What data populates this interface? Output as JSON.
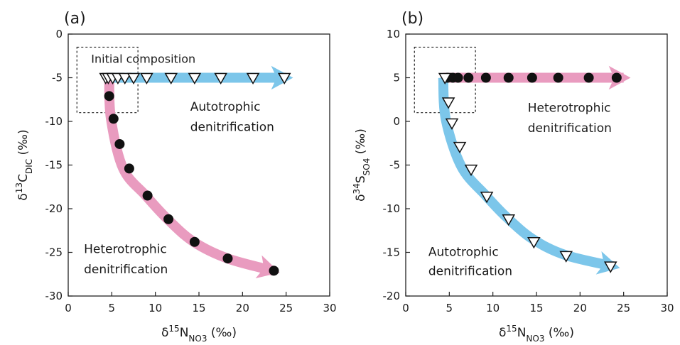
{
  "chart_data": [
    {
      "type": "scatter",
      "panel_label": "(a)",
      "xlabel": {
        "main": "δ",
        "sup": "15",
        "base": "N",
        "sub": "NO3",
        "unit": " (‰)"
      },
      "ylabel": {
        "main": "δ",
        "sup": "13",
        "base": "C",
        "sub": "DIC",
        "unit": " (‰)"
      },
      "xlim": [
        0,
        30
      ],
      "ylim": [
        -30,
        0
      ],
      "xticks": [
        "0",
        "5",
        "10",
        "15",
        "20",
        "25",
        "30"
      ],
      "yticks": [
        "0",
        "-5",
        "-10",
        "-15",
        "-20",
        "-25",
        "-30"
      ],
      "grid": false,
      "initial_box": {
        "label": "Initial composition",
        "x": [
          1,
          8
        ],
        "y": [
          -9,
          -1.5
        ]
      },
      "annotations": [
        {
          "id": "autotrophic",
          "lines": [
            "Autotrophic",
            "denitrification"
          ],
          "x": 14,
          "y": [
            -8.8,
            -11.1
          ]
        },
        {
          "id": "heterotrophic",
          "lines": [
            "Heterotrophic",
            "denitrification"
          ],
          "x": 1.8,
          "y": [
            -25.1,
            -27.4
          ]
        }
      ],
      "arrows": [
        {
          "name": "Autotrophic denitrification",
          "color": "#7cc6ea",
          "points": [
            [
              4.3,
              -5
            ],
            [
              25,
              -5
            ]
          ]
        },
        {
          "name": "Heterotrophic denitrification",
          "color": "#e99bbf",
          "points": [
            [
              4.7,
              -5
            ],
            [
              4.9,
              -9.7
            ],
            [
              6.3,
              -15.4
            ],
            [
              8.9,
              -18.5
            ],
            [
              11.4,
              -21.2
            ],
            [
              14.4,
              -23.8
            ],
            [
              18.3,
              -25.7
            ],
            [
              23.5,
              -27.1
            ]
          ]
        }
      ],
      "series": [
        {
          "marker": "triangle-down",
          "x": [
            4.3,
            4.6,
            5.1,
            5.7,
            6.5,
            7.5,
            9.0,
            11.8,
            14.5,
            17.5,
            21.2,
            24.8
          ],
          "y": [
            -5,
            -5,
            -5,
            -5,
            -5,
            -5,
            -5,
            -5,
            -5,
            -5,
            -5,
            -5
          ]
        },
        {
          "marker": "circle",
          "x": [
            4.7,
            5.2,
            5.9,
            7.0,
            9.1,
            11.5,
            14.5,
            18.3,
            23.6
          ],
          "y": [
            -7.1,
            -9.7,
            -12.6,
            -15.4,
            -18.5,
            -21.2,
            -23.8,
            -25.7,
            -27.1
          ]
        }
      ]
    },
    {
      "type": "scatter",
      "panel_label": "(b)",
      "xlabel": {
        "main": "δ",
        "sup": "15",
        "base": "N",
        "sub": "NO3",
        "unit": " (‰)"
      },
      "ylabel": {
        "main": "δ",
        "sup": "34",
        "base": "S",
        "sub": "SO4",
        "unit": " (‰)"
      },
      "xlim": [
        0,
        30
      ],
      "ylim": [
        -20,
        10
      ],
      "xticks": [
        "0",
        "5",
        "10",
        "15",
        "20",
        "25",
        "30"
      ],
      "yticks": [
        "10",
        "5",
        "0",
        "-5",
        "-10",
        "-15",
        "-20"
      ],
      "grid": false,
      "initial_box": {
        "label": "",
        "x": [
          1,
          8
        ],
        "y": [
          1,
          8.5
        ]
      },
      "annotations": [
        {
          "id": "heterotrophic",
          "lines": [
            "Heterotrophic",
            "denitrification"
          ],
          "x": 14,
          "y": [
            1.1,
            -1.2
          ]
        },
        {
          "id": "autotrophic",
          "lines": [
            "Autotrophic",
            "denitrification"
          ],
          "x": 2.6,
          "y": [
            -15.4,
            -17.6
          ]
        }
      ],
      "arrows": [
        {
          "name": "Heterotrophic denitrification",
          "color": "#e99bbf",
          "points": [
            [
              4.3,
              5
            ],
            [
              25,
              5
            ]
          ]
        },
        {
          "name": "Autotrophic denitrification",
          "color": "#7cc6ea",
          "points": [
            [
              4.3,
              5
            ],
            [
              4.6,
              0.2
            ],
            [
              6.4,
              -5.2
            ],
            [
              9.2,
              -8.5
            ],
            [
              11.6,
              -11.0
            ],
            [
              14.6,
              -13.5
            ],
            [
              18.3,
              -15.3
            ],
            [
              23.8,
              -16.6
            ]
          ]
        }
      ],
      "series": [
        {
          "marker": "circle",
          "x": [
            4.8,
            5.4,
            6.0,
            7.2,
            9.2,
            11.8,
            14.5,
            17.5,
            21.0,
            24.2
          ],
          "y": [
            5,
            5,
            5,
            5,
            5,
            5,
            5,
            5,
            5,
            5
          ]
        },
        {
          "marker": "triangle-down",
          "x": [
            4.5,
            4.9,
            5.3,
            6.2,
            7.5,
            9.3,
            11.8,
            14.7,
            18.4,
            23.5
          ],
          "y": [
            5,
            2.2,
            -0.2,
            -2.9,
            -5.5,
            -8.6,
            -11.2,
            -13.8,
            -15.4,
            -16.6
          ]
        }
      ]
    }
  ]
}
